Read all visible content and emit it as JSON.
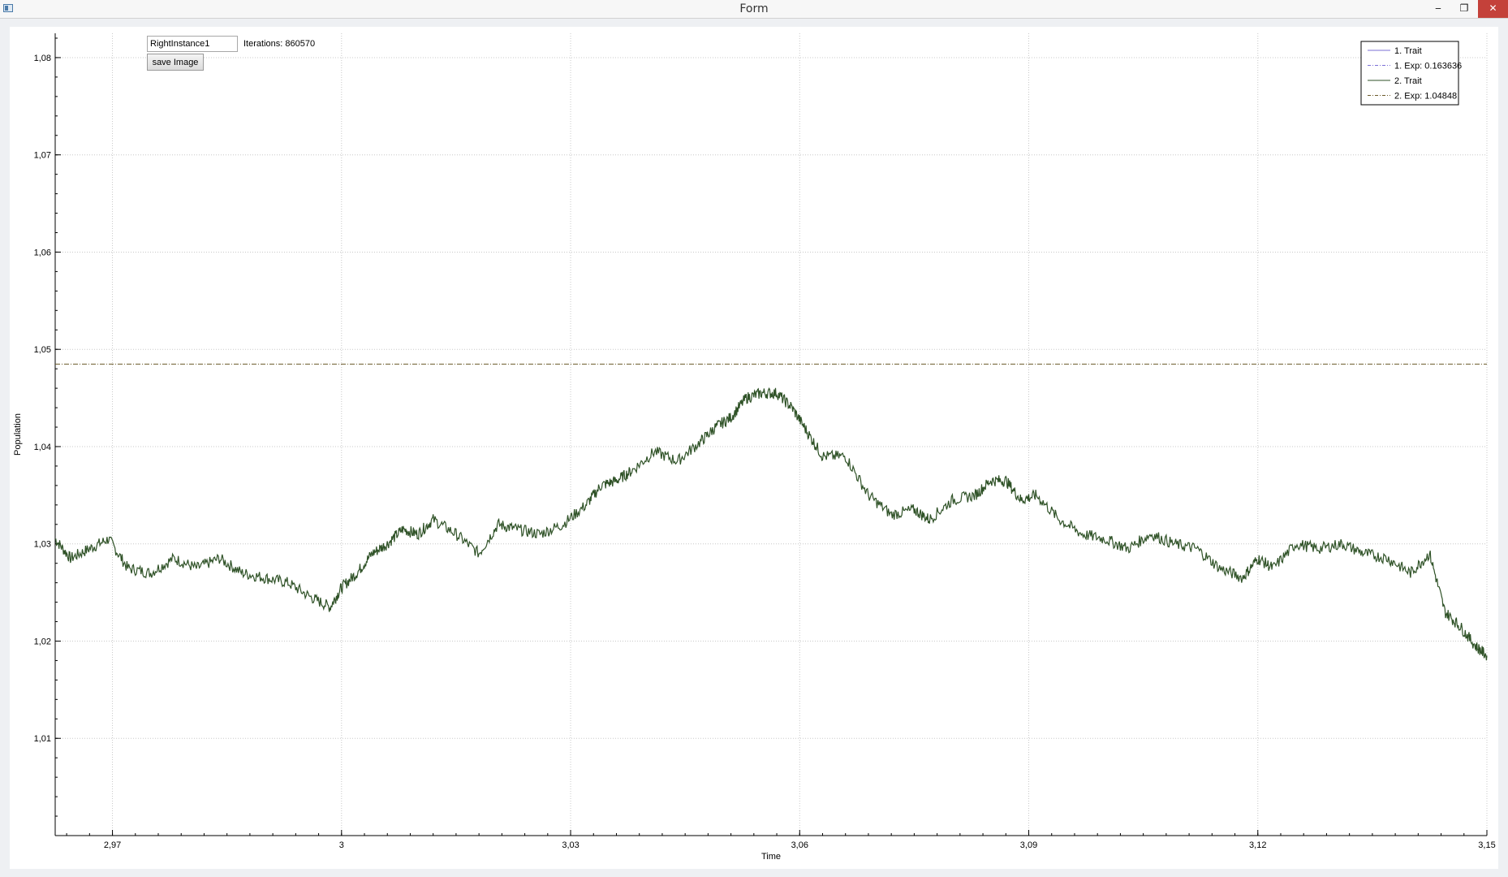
{
  "window": {
    "title": "Form",
    "min_label": "‒",
    "restore_label": "❐",
    "close_label": "✕"
  },
  "controls": {
    "instance_value": "RightInstance1",
    "iterations_label": "Iterations:",
    "iterations_value": "860570",
    "save_label": "save Image"
  },
  "chart_data": {
    "type": "line",
    "xlabel": "Time",
    "ylabel": "Population",
    "xlim": [
      2.9625,
      3.15
    ],
    "ylim": [
      1.0,
      1.0825
    ],
    "x_ticks": [
      "2,97",
      "3",
      "3,03",
      "3,06",
      "3,09",
      "3,12",
      "3,15"
    ],
    "x_tick_values": [
      2.97,
      3.0,
      3.03,
      3.06,
      3.09,
      3.12,
      3.15
    ],
    "y_ticks": [
      "1,01",
      "1,02",
      "1,03",
      "1,04",
      "1,05",
      "1,06",
      "1,07",
      "1,08"
    ],
    "y_tick_values": [
      1.01,
      1.02,
      1.03,
      1.04,
      1.05,
      1.06,
      1.07,
      1.08
    ],
    "grid": true,
    "legend_position": "top-right",
    "legend": [
      {
        "label": "1. Trait",
        "color": "#7b6fd6",
        "style": "solid"
      },
      {
        "label": "1. Exp: 0.163636",
        "color": "#7b6fd6",
        "style": "dashdot"
      },
      {
        "label": "2. Trait",
        "color": "#2f5227",
        "style": "solid"
      },
      {
        "label": "2. Exp: 1.04848",
        "color": "#6b5a2a",
        "style": "dashdot"
      }
    ],
    "series": [
      {
        "name": "2. Trait",
        "color": "#2f5227",
        "x": [
          2.9625,
          2.9645,
          2.967,
          2.9695,
          2.972,
          2.975,
          2.978,
          2.981,
          2.984,
          2.987,
          2.99,
          2.993,
          2.996,
          2.9985,
          3.0,
          3.002,
          3.004,
          3.006,
          3.008,
          3.01,
          3.012,
          3.015,
          3.018,
          3.0205,
          3.023,
          3.026,
          3.029,
          3.032,
          3.034,
          3.036,
          3.038,
          3.041,
          3.044,
          3.047,
          3.049,
          3.051,
          3.053,
          3.055,
          3.057,
          3.059,
          3.061,
          3.063,
          3.066,
          3.069,
          3.072,
          3.075,
          3.077,
          3.08,
          3.083,
          3.085,
          3.087,
          3.089,
          3.091,
          3.094,
          3.097,
          3.1,
          3.103,
          3.106,
          3.109,
          3.112,
          3.115,
          3.118,
          3.12,
          3.122,
          3.125,
          3.128,
          3.131,
          3.134,
          3.137,
          3.14,
          3.1425,
          3.1445,
          3.1465,
          3.1485,
          3.15
        ],
        "y": [
          1.0305,
          1.0285,
          1.0295,
          1.0305,
          1.0275,
          1.027,
          1.0285,
          1.0275,
          1.0285,
          1.027,
          1.0265,
          1.026,
          1.0245,
          1.0235,
          1.0255,
          1.027,
          1.029,
          1.03,
          1.0315,
          1.031,
          1.0325,
          1.031,
          1.029,
          1.032,
          1.0315,
          1.031,
          1.032,
          1.034,
          1.036,
          1.0365,
          1.0375,
          1.0395,
          1.0385,
          1.0405,
          1.042,
          1.043,
          1.045,
          1.0455,
          1.0455,
          1.044,
          1.0415,
          1.039,
          1.039,
          1.035,
          1.033,
          1.0335,
          1.0325,
          1.0345,
          1.035,
          1.0365,
          1.0365,
          1.0345,
          1.035,
          1.0325,
          1.031,
          1.0305,
          1.0295,
          1.031,
          1.03,
          1.0295,
          1.0275,
          1.0265,
          1.0285,
          1.0275,
          1.03,
          1.0295,
          1.03,
          1.029,
          1.0285,
          1.027,
          1.029,
          1.023,
          1.0215,
          1.0195,
          1.0185
        ]
      },
      {
        "name": "2. Exp: 1.04848",
        "color": "#6b5a2a",
        "style": "dashdot",
        "constant": 1.04848
      }
    ]
  }
}
